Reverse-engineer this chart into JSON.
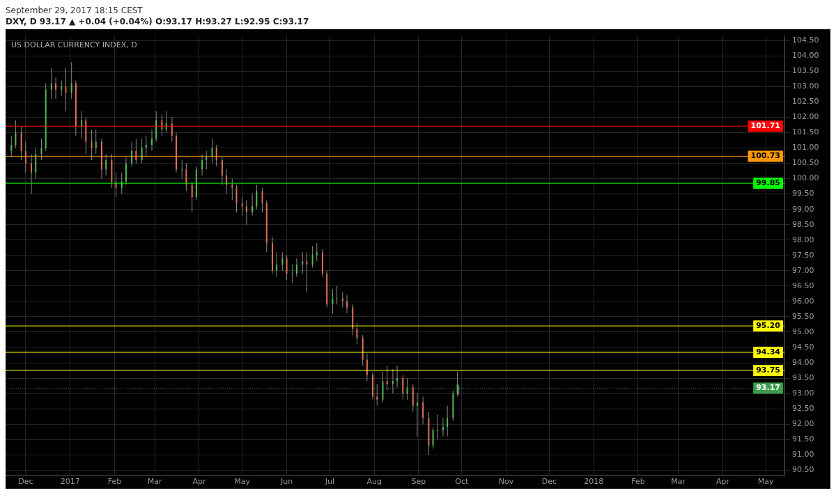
{
  "chart_data": {
    "type": "candlestick",
    "title": "US DOLLAR CURRENCY INDEX, D",
    "subtitle": "September 29, 2017 18:15 CEST",
    "annotations": [
      "DXY, D 93.17 ▲ +0.04 (+0.04%) O:93.17 H:93.27 L:92.95 C:93.17"
    ],
    "x": [
      "2016-11-21",
      "2016-11-24",
      "2016-11-28",
      "2016-12-01",
      "2016-12-05",
      "2016-12-08",
      "2016-12-12",
      "2016-12-15",
      "2016-12-19",
      "2016-12-22",
      "2016-12-26",
      "2016-12-29",
      "2017-01-02",
      "2017-01-05",
      "2017-01-09",
      "2017-01-12",
      "2017-01-16",
      "2017-01-19",
      "2017-01-23",
      "2017-01-26",
      "2017-01-30",
      "2017-02-02",
      "2017-02-06",
      "2017-02-09",
      "2017-02-13",
      "2017-02-16",
      "2017-02-20",
      "2017-02-23",
      "2017-02-27",
      "2017-03-02",
      "2017-03-06",
      "2017-03-09",
      "2017-03-13",
      "2017-03-16",
      "2017-03-20",
      "2017-03-23",
      "2017-03-27",
      "2017-03-30",
      "2017-04-03",
      "2017-04-06",
      "2017-04-10",
      "2017-04-13",
      "2017-04-17",
      "2017-04-20",
      "2017-04-24",
      "2017-04-27",
      "2017-05-01",
      "2017-05-04",
      "2017-05-08",
      "2017-05-11",
      "2017-05-15",
      "2017-05-18",
      "2017-05-22",
      "2017-05-25",
      "2017-05-29",
      "2017-06-01",
      "2017-06-05",
      "2017-06-08",
      "2017-06-12",
      "2017-06-15",
      "2017-06-19",
      "2017-06-22",
      "2017-06-26",
      "2017-06-29",
      "2017-07-03",
      "2017-07-06",
      "2017-07-10",
      "2017-07-13",
      "2017-07-17",
      "2017-07-20",
      "2017-07-24",
      "2017-07-27",
      "2017-07-31",
      "2017-08-03",
      "2017-08-07",
      "2017-08-10",
      "2017-08-14",
      "2017-08-17",
      "2017-08-21",
      "2017-08-24",
      "2017-08-28",
      "2017-08-31",
      "2017-09-04",
      "2017-09-08",
      "2017-09-11",
      "2017-09-14",
      "2017-09-18",
      "2017-09-21",
      "2017-09-25",
      "2017-09-28",
      "2017-09-29"
    ],
    "ohlc": [
      [
        100.9,
        101.4,
        100.7,
        101.1
      ],
      [
        101.1,
        101.9,
        101.0,
        101.5
      ],
      [
        101.5,
        101.7,
        100.6,
        100.9
      ],
      [
        100.9,
        101.2,
        100.2,
        100.5
      ],
      [
        100.5,
        100.8,
        99.5,
        100.2
      ],
      [
        100.2,
        101.0,
        100.0,
        100.8
      ],
      [
        100.8,
        101.3,
        100.6,
        101.0
      ],
      [
        101.0,
        103.1,
        100.9,
        102.9
      ],
      [
        102.9,
        103.6,
        102.6,
        103.1
      ],
      [
        103.1,
        103.3,
        102.6,
        102.9
      ],
      [
        102.9,
        103.2,
        102.7,
        103.0
      ],
      [
        103.0,
        103.6,
        102.2,
        102.8
      ],
      [
        102.8,
        103.8,
        102.6,
        103.1
      ],
      [
        103.1,
        103.2,
        101.4,
        101.7
      ],
      [
        101.7,
        102.2,
        101.3,
        101.9
      ],
      [
        101.9,
        102.0,
        100.8,
        101.2
      ],
      [
        101.2,
        101.6,
        100.6,
        101.0
      ],
      [
        101.0,
        101.6,
        100.8,
        101.2
      ],
      [
        101.2,
        101.3,
        100.0,
        100.3
      ],
      [
        100.3,
        100.8,
        100.1,
        100.6
      ],
      [
        100.6,
        100.8,
        99.7,
        99.9
      ],
      [
        99.9,
        100.2,
        99.4,
        99.7
      ],
      [
        99.7,
        100.2,
        99.5,
        99.9
      ],
      [
        99.9,
        100.7,
        99.8,
        100.5
      ],
      [
        100.5,
        101.2,
        100.4,
        100.9
      ],
      [
        100.9,
        101.3,
        100.5,
        100.6
      ],
      [
        100.6,
        101.3,
        100.5,
        101.0
      ],
      [
        101.0,
        101.4,
        100.7,
        101.1
      ],
      [
        101.1,
        101.6,
        100.9,
        101.3
      ],
      [
        101.3,
        102.2,
        101.2,
        101.9
      ],
      [
        101.9,
        102.1,
        101.4,
        101.6
      ],
      [
        101.6,
        102.2,
        101.5,
        101.8
      ],
      [
        101.8,
        102.0,
        101.2,
        101.4
      ],
      [
        101.4,
        101.5,
        100.2,
        100.3
      ],
      [
        100.3,
        100.6,
        100.0,
        100.3
      ],
      [
        100.3,
        100.5,
        99.6,
        99.8
      ],
      [
        99.8,
        99.9,
        98.9,
        99.4
      ],
      [
        99.4,
        100.4,
        99.3,
        100.3
      ],
      [
        100.3,
        100.8,
        100.1,
        100.6
      ],
      [
        100.6,
        100.9,
        100.3,
        100.7
      ],
      [
        100.7,
        101.3,
        100.5,
        101.0
      ],
      [
        101.0,
        101.1,
        100.4,
        100.6
      ],
      [
        100.6,
        100.7,
        99.8,
        100.1
      ],
      [
        100.1,
        100.3,
        99.5,
        99.8
      ],
      [
        99.8,
        100.0,
        99.3,
        99.7
      ],
      [
        99.7,
        99.8,
        98.9,
        99.2
      ],
      [
        99.2,
        99.4,
        98.8,
        99.1
      ],
      [
        99.1,
        99.3,
        98.5,
        98.9
      ],
      [
        98.9,
        99.5,
        98.8,
        99.1
      ],
      [
        99.1,
        99.8,
        99.0,
        99.6
      ],
      [
        99.6,
        99.7,
        98.9,
        99.2
      ],
      [
        99.2,
        99.3,
        97.6,
        97.9
      ],
      [
        97.9,
        98.1,
        96.9,
        97.0
      ],
      [
        97.0,
        97.6,
        96.8,
        97.2
      ],
      [
        97.2,
        97.6,
        97.0,
        97.4
      ],
      [
        97.4,
        97.5,
        96.7,
        96.9
      ],
      [
        96.9,
        97.2,
        96.6,
        96.9
      ],
      [
        96.9,
        97.4,
        96.8,
        97.2
      ],
      [
        97.2,
        97.6,
        96.9,
        97.3
      ],
      [
        97.3,
        97.6,
        96.3,
        97.2
      ],
      [
        97.2,
        97.8,
        97.1,
        97.5
      ],
      [
        97.5,
        97.9,
        97.3,
        97.6
      ],
      [
        97.6,
        97.7,
        96.8,
        96.9
      ],
      [
        96.9,
        97.0,
        95.8,
        95.9
      ],
      [
        95.9,
        96.4,
        95.6,
        96.1
      ],
      [
        96.1,
        96.5,
        95.9,
        96.1
      ],
      [
        96.1,
        96.3,
        95.8,
        96.0
      ],
      [
        96.0,
        96.2,
        95.6,
        95.8
      ],
      [
        95.8,
        95.9,
        94.9,
        95.1
      ],
      [
        95.1,
        95.3,
        94.6,
        94.8
      ],
      [
        94.8,
        94.9,
        93.9,
        94.1
      ],
      [
        94.1,
        94.3,
        93.4,
        93.6
      ],
      [
        93.6,
        93.7,
        92.8,
        92.9
      ],
      [
        92.9,
        93.3,
        92.6,
        92.8
      ],
      [
        92.8,
        93.7,
        92.7,
        93.4
      ],
      [
        93.4,
        93.9,
        93.1,
        93.3
      ],
      [
        93.3,
        93.8,
        93.0,
        93.4
      ],
      [
        93.4,
        93.9,
        93.2,
        93.5
      ],
      [
        93.5,
        93.6,
        92.8,
        93.0
      ],
      [
        93.0,
        93.5,
        92.8,
        93.2
      ],
      [
        93.2,
        93.3,
        92.4,
        92.6
      ],
      [
        92.6,
        93.0,
        91.6,
        92.7
      ],
      [
        92.7,
        92.9,
        92.0,
        92.2
      ],
      [
        92.2,
        92.4,
        91.0,
        91.3
      ],
      [
        91.3,
        91.9,
        91.2,
        91.8
      ],
      [
        91.8,
        92.3,
        91.5,
        91.8
      ],
      [
        91.8,
        92.2,
        91.6,
        91.9
      ],
      [
        91.9,
        92.6,
        91.6,
        92.2
      ],
      [
        92.2,
        93.1,
        92.1,
        93.0
      ],
      [
        93.0,
        93.7,
        92.9,
        93.3
      ],
      [
        93.17,
        93.27,
        92.95,
        93.17
      ]
    ],
    "xlim": [
      "2016-11-17",
      "2018-05-14"
    ],
    "xticks": [
      {
        "value": "2016-12",
        "label": "Dec"
      },
      {
        "value": "2017",
        "label": "2017"
      },
      {
        "value": "2017-02",
        "label": "Feb"
      },
      {
        "value": "2017-03",
        "label": "Mar"
      },
      {
        "value": "2017-04",
        "label": "Apr"
      },
      {
        "value": "2017-05",
        "label": "May"
      },
      {
        "value": "2017-06",
        "label": "Jun"
      },
      {
        "value": "2017-07",
        "label": "Jul"
      },
      {
        "value": "2017-08",
        "label": "Aug"
      },
      {
        "value": "2017-09",
        "label": "Sep"
      },
      {
        "value": "2017-10",
        "label": "Oct"
      },
      {
        "value": "2017-11",
        "label": "Nov"
      },
      {
        "value": "2017-12",
        "label": "Dec"
      },
      {
        "value": "2018",
        "label": "2018"
      },
      {
        "value": "2018-02",
        "label": "Feb"
      },
      {
        "value": "2018-03",
        "label": "Mar"
      },
      {
        "value": "2018-04",
        "label": "Apr"
      },
      {
        "value": "2018-05",
        "label": "May"
      }
    ],
    "ylim": [
      90.33,
      104.65
    ],
    "yticks": [
      {
        "value": 90.5,
        "label": "90.50"
      },
      {
        "value": 91,
        "label": "91.00"
      },
      {
        "value": 91.5,
        "label": "91.50"
      },
      {
        "value": 92,
        "label": "92.00"
      },
      {
        "value": 92.5,
        "label": "92.50"
      },
      {
        "value": 93,
        "label": "93.00"
      },
      {
        "value": 93.5,
        "label": "93.50"
      },
      {
        "value": 94,
        "label": "94.00"
      },
      {
        "value": 94.5,
        "label": "94.50"
      },
      {
        "value": 95,
        "label": "95.00"
      },
      {
        "value": 95.5,
        "label": "95.50"
      },
      {
        "value": 96,
        "label": "96.00"
      },
      {
        "value": 96.5,
        "label": "96.50"
      },
      {
        "value": 97,
        "label": "97.00"
      },
      {
        "value": 97.5,
        "label": "97.50"
      },
      {
        "value": 98,
        "label": "98.00"
      },
      {
        "value": 98.5,
        "label": "98.50"
      },
      {
        "value": 99,
        "label": "99.00"
      },
      {
        "value": 99.5,
        "label": "99.50"
      },
      {
        "value": 100,
        "label": "100.00"
      },
      {
        "value": 100.5,
        "label": "100.50"
      },
      {
        "value": 101,
        "label": "101.00"
      },
      {
        "value": 101.5,
        "label": "101.50"
      },
      {
        "value": 102,
        "label": "102.00"
      },
      {
        "value": 102.5,
        "label": "102.50"
      },
      {
        "value": 103,
        "label": "103.00"
      },
      {
        "value": 103.5,
        "label": "103.50"
      },
      {
        "value": 104,
        "label": "104.00"
      },
      {
        "value": 104.5,
        "label": "104.50"
      }
    ],
    "ref_lines": [
      {
        "axis": "y",
        "value": 101.71,
        "label": "101.71",
        "color": "#ff0000"
      },
      {
        "axis": "y",
        "value": 100.73,
        "label": "100.73",
        "color": "#ff9800"
      },
      {
        "axis": "y",
        "value": 99.85,
        "label": "99.85",
        "color": "#00ff00"
      },
      {
        "axis": "y",
        "value": 95.2,
        "label": "95.20",
        "color": "#ffff00"
      },
      {
        "axis": "y",
        "value": 94.34,
        "label": "94.34",
        "color": "#ffff00"
      },
      {
        "axis": "y",
        "value": 93.75,
        "label": "93.75",
        "color": "#ffff00"
      },
      {
        "axis": "y",
        "value": 93.17,
        "label": "93.17",
        "color": "#3c9c4c",
        "line_style": "dotted"
      }
    ],
    "grid": true
  }
}
